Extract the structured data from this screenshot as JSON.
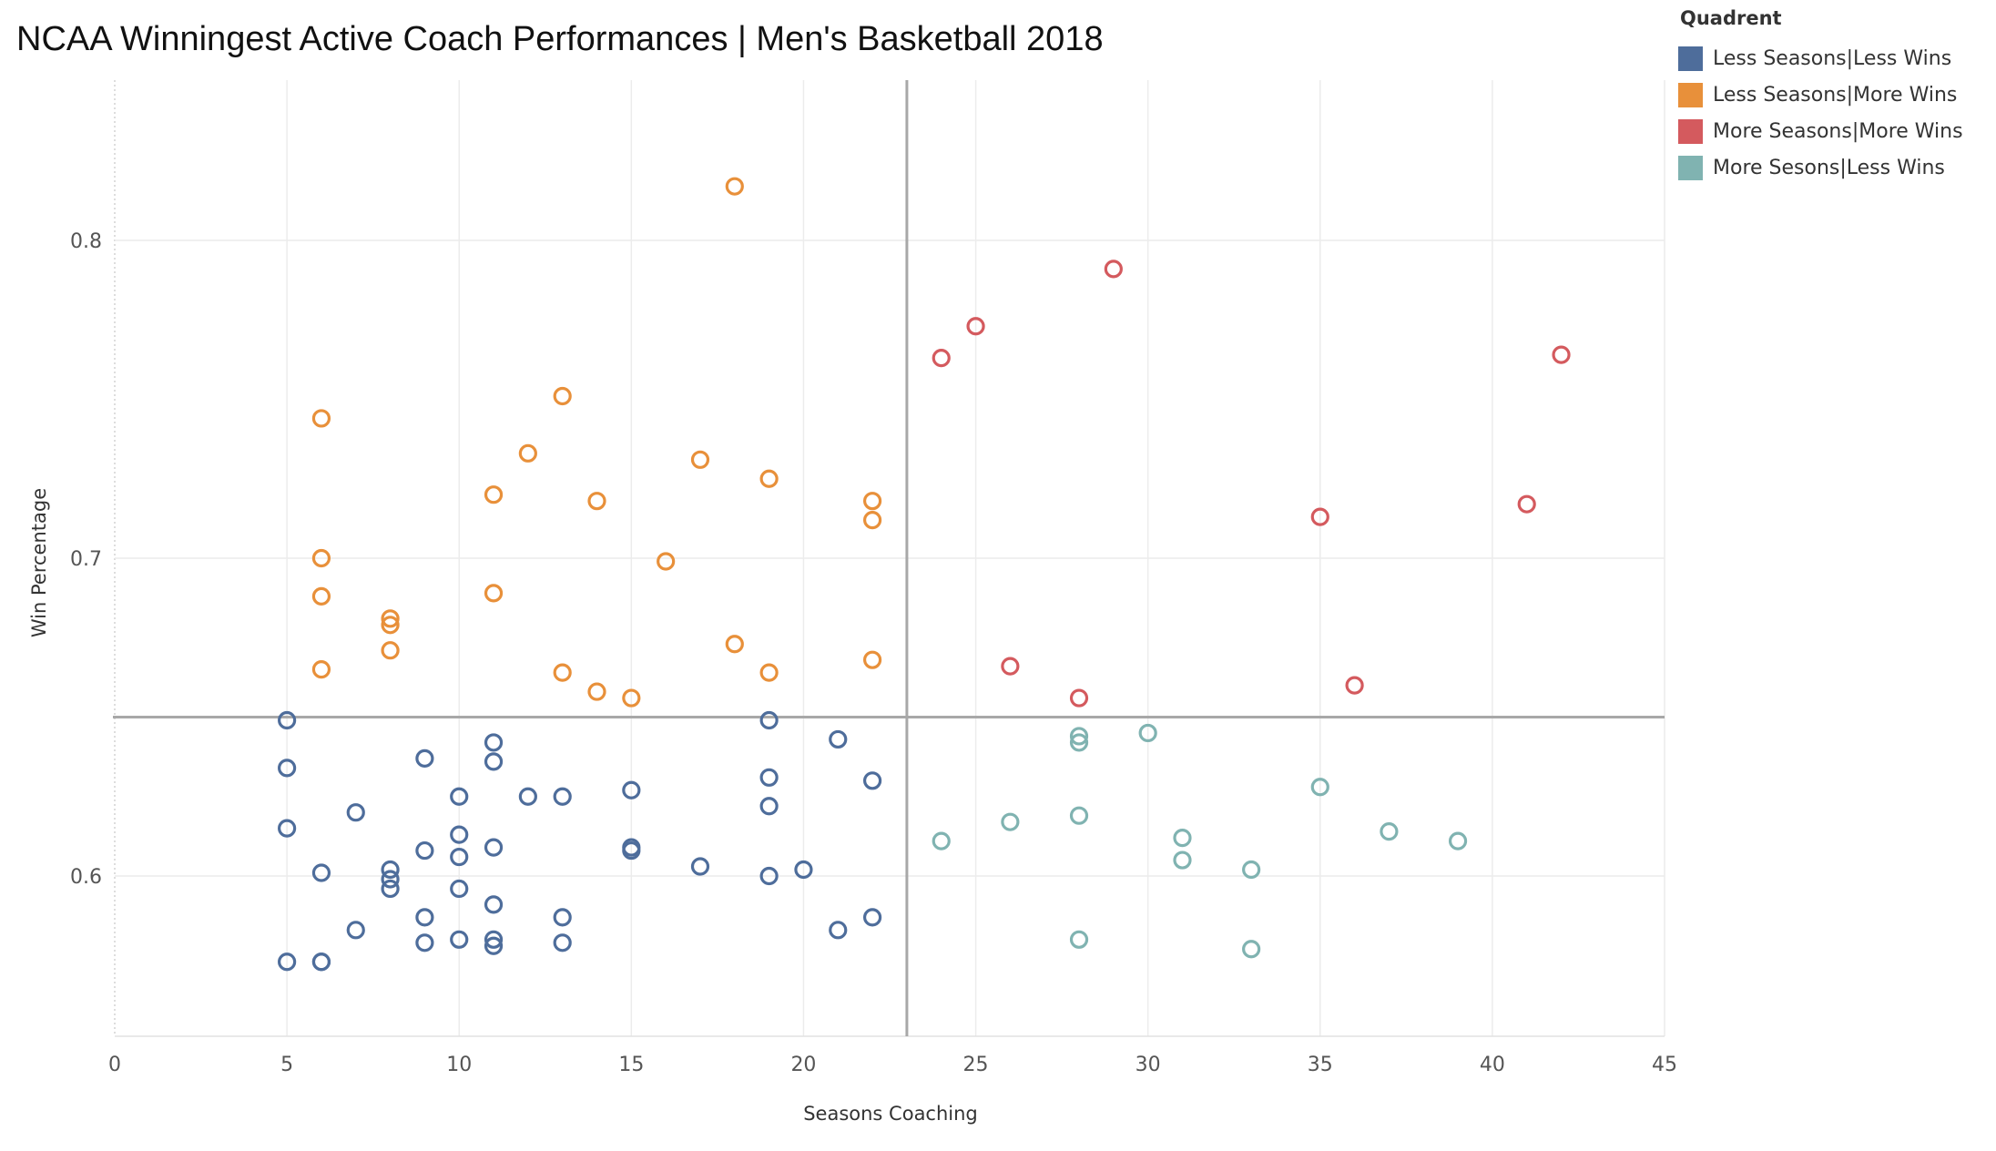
{
  "chart_data": {
    "type": "scatter",
    "title": "NCAA Winningest Active Coach Performances | Men's Basketball 2018",
    "xlabel": "Seasons Coaching",
    "ylabel": "Win Percentage",
    "xlim": [
      0,
      45
    ],
    "ylim": [
      0.55,
      0.85
    ],
    "x_ticks": [
      "0",
      "5",
      "10",
      "15",
      "20",
      "25",
      "30",
      "35",
      "40",
      "45"
    ],
    "y_ticks": [
      "0.6",
      "0.7",
      "0.8"
    ],
    "reference_lines": {
      "x": 23,
      "y": 0.65
    },
    "grid": true,
    "legend": {
      "title": "Quadrent",
      "position": "top-right"
    },
    "series": [
      {
        "name": "Less Seasons|Less Wins",
        "color": "#4e6d9b",
        "points": [
          [
            5,
            0.649
          ],
          [
            5,
            0.634
          ],
          [
            5,
            0.615
          ],
          [
            5,
            0.573
          ],
          [
            6,
            0.601
          ],
          [
            6,
            0.573
          ],
          [
            6,
            0.573
          ],
          [
            7,
            0.62
          ],
          [
            7,
            0.583
          ],
          [
            8,
            0.602
          ],
          [
            8,
            0.599
          ],
          [
            8,
            0.596
          ],
          [
            9,
            0.637
          ],
          [
            9,
            0.608
          ],
          [
            9,
            0.587
          ],
          [
            9,
            0.579
          ],
          [
            10,
            0.625
          ],
          [
            10,
            0.613
          ],
          [
            10,
            0.606
          ],
          [
            10,
            0.596
          ],
          [
            10,
            0.58
          ],
          [
            11,
            0.642
          ],
          [
            11,
            0.636
          ],
          [
            11,
            0.609
          ],
          [
            11,
            0.591
          ],
          [
            11,
            0.58
          ],
          [
            11,
            0.578
          ],
          [
            12,
            0.625
          ],
          [
            13,
            0.625
          ],
          [
            13,
            0.587
          ],
          [
            13,
            0.579
          ],
          [
            15,
            0.627
          ],
          [
            15,
            0.609
          ],
          [
            15,
            0.608
          ],
          [
            17,
            0.603
          ],
          [
            19,
            0.649
          ],
          [
            19,
            0.631
          ],
          [
            19,
            0.622
          ],
          [
            19,
            0.6
          ],
          [
            20,
            0.602
          ],
          [
            21,
            0.643
          ],
          [
            21,
            0.583
          ],
          [
            22,
            0.63
          ],
          [
            22,
            0.587
          ]
        ]
      },
      {
        "name": "Less Seasons|More Wins",
        "color": "#e8903a",
        "points": [
          [
            6,
            0.744
          ],
          [
            6,
            0.7
          ],
          [
            6,
            0.688
          ],
          [
            6,
            0.665
          ],
          [
            8,
            0.681
          ],
          [
            8,
            0.679
          ],
          [
            8,
            0.671
          ],
          [
            11,
            0.72
          ],
          [
            11,
            0.689
          ],
          [
            12,
            0.733
          ],
          [
            13,
            0.751
          ],
          [
            13,
            0.664
          ],
          [
            14,
            0.718
          ],
          [
            14,
            0.658
          ],
          [
            15,
            0.656
          ],
          [
            16,
            0.699
          ],
          [
            17,
            0.731
          ],
          [
            18,
            0.817
          ],
          [
            18,
            0.673
          ],
          [
            19,
            0.725
          ],
          [
            19,
            0.664
          ],
          [
            22,
            0.718
          ],
          [
            22,
            0.712
          ],
          [
            22,
            0.668
          ]
        ]
      },
      {
        "name": "More Seasons|More Wins",
        "color": "#d45a5e",
        "points": [
          [
            24,
            0.763
          ],
          [
            25,
            0.773
          ],
          [
            26,
            0.666
          ],
          [
            28,
            0.656
          ],
          [
            29,
            0.791
          ],
          [
            35,
            0.713
          ],
          [
            36,
            0.66
          ],
          [
            41,
            0.717
          ],
          [
            42,
            0.764
          ]
        ]
      },
      {
        "name": "More Sesons|Less Wins",
        "color": "#80b3b1",
        "points": [
          [
            24,
            0.611
          ],
          [
            26,
            0.617
          ],
          [
            28,
            0.644
          ],
          [
            28,
            0.642
          ],
          [
            28,
            0.619
          ],
          [
            28,
            0.58
          ],
          [
            30,
            0.645
          ],
          [
            31,
            0.612
          ],
          [
            31,
            0.605
          ],
          [
            33,
            0.602
          ],
          [
            33,
            0.577
          ],
          [
            35,
            0.628
          ],
          [
            37,
            0.614
          ],
          [
            39,
            0.611
          ]
        ]
      }
    ]
  }
}
